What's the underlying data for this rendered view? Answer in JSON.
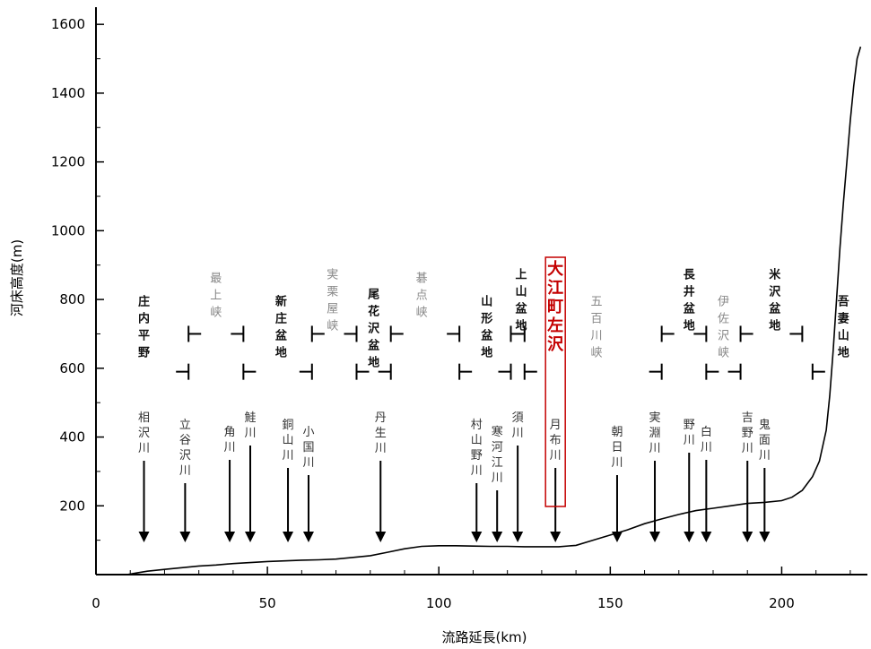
{
  "chart_data": {
    "type": "line",
    "title": "",
    "xlabel": "流路延長(km)",
    "ylabel": "河床高度(m)",
    "xlim": [
      0,
      225
    ],
    "ylim": [
      0,
      1650
    ],
    "x_ticks": [
      0,
      50,
      100,
      150,
      200
    ],
    "y_ticks": [
      200,
      400,
      600,
      800,
      1000,
      1200,
      1400,
      1600
    ],
    "grid": false,
    "series": [
      {
        "name": "",
        "points": [
          [
            9,
            0
          ],
          [
            12,
            5
          ],
          [
            15,
            10
          ],
          [
            20,
            15
          ],
          [
            25,
            20
          ],
          [
            30,
            25
          ],
          [
            35,
            28
          ],
          [
            40,
            32
          ],
          [
            45,
            35
          ],
          [
            50,
            38
          ],
          [
            55,
            40
          ],
          [
            60,
            42
          ],
          [
            65,
            43
          ],
          [
            70,
            45
          ],
          [
            75,
            50
          ],
          [
            80,
            55
          ],
          [
            85,
            65
          ],
          [
            90,
            75
          ],
          [
            95,
            82
          ],
          [
            100,
            84
          ],
          [
            105,
            84
          ],
          [
            110,
            83
          ],
          [
            115,
            82
          ],
          [
            120,
            82
          ],
          [
            125,
            81
          ],
          [
            130,
            81
          ],
          [
            135,
            81
          ],
          [
            140,
            85
          ],
          [
            145,
            100
          ],
          [
            150,
            115
          ],
          [
            155,
            130
          ],
          [
            160,
            148
          ],
          [
            165,
            162
          ],
          [
            170,
            175
          ],
          [
            175,
            186
          ],
          [
            180,
            193
          ],
          [
            185,
            200
          ],
          [
            190,
            207
          ],
          [
            195,
            210
          ],
          [
            200,
            215
          ],
          [
            203,
            225
          ],
          [
            206,
            245
          ],
          [
            209,
            285
          ],
          [
            211,
            330
          ],
          [
            213,
            420
          ],
          [
            214,
            520
          ],
          [
            215,
            650
          ],
          [
            216,
            800
          ],
          [
            217,
            950
          ],
          [
            218,
            1080
          ],
          [
            219,
            1200
          ],
          [
            220,
            1320
          ],
          [
            221,
            1420
          ],
          [
            222,
            1500
          ],
          [
            223,
            1535
          ]
        ]
      }
    ],
    "sections": [
      {
        "label": "庄内平野",
        "style": "bold",
        "x": 14,
        "start": 0,
        "end": 27
      },
      {
        "label": "最上峡",
        "style": "gray",
        "x": 35,
        "start": 27,
        "end": 43
      },
      {
        "label": "新庄盆地",
        "style": "bold",
        "x": 54,
        "start": 43,
        "end": 63
      },
      {
        "label": "実栗屋峡",
        "style": "gray",
        "x": 69,
        "start": 63,
        "end": 76
      },
      {
        "label": "尾花沢盆地",
        "style": "bold",
        "x": 81,
        "start": 76,
        "end": 86
      },
      {
        "label": "碁点峡",
        "style": "gray",
        "x": 95,
        "start": 86,
        "end": 106
      },
      {
        "label": "山形盆地",
        "style": "bold",
        "x": 114,
        "start": 106,
        "end": 121
      },
      {
        "label": "上山盆地",
        "style": "bold",
        "x": 124,
        "start": 121,
        "end": 125
      },
      {
        "label": "五百川峡",
        "style": "gray",
        "x": 146,
        "start": 125,
        "end": 165
      },
      {
        "label": "長井盆地",
        "style": "bold",
        "x": 173,
        "start": 165,
        "end": 178
      },
      {
        "label": "伊佐沢峡",
        "style": "gray",
        "x": 183,
        "start": 178,
        "end": 188
      },
      {
        "label": "米沢盆地",
        "style": "bold",
        "x": 198,
        "start": 188,
        "end": 206
      },
      {
        "label": "吾妻山地",
        "style": "bold",
        "x": 218,
        "start": 209,
        "end": 225
      }
    ],
    "highlight": {
      "label": "大江町左沢",
      "x": 134
    },
    "tributaries": [
      {
        "label": "相沢川",
        "x": 14
      },
      {
        "label": "立谷沢川",
        "x": 26
      },
      {
        "label": "角川",
        "x": 39
      },
      {
        "label": "鮭川",
        "x": 45
      },
      {
        "label": "銅山川",
        "x": 56
      },
      {
        "label": "小国川",
        "x": 62
      },
      {
        "label": "丹生川",
        "x": 83
      },
      {
        "label": "村山野川",
        "x": 111
      },
      {
        "label": "寒河江川",
        "x": 117
      },
      {
        "label": "須川",
        "x": 123
      },
      {
        "label": "月布川",
        "x": 134
      },
      {
        "label": "朝日川",
        "x": 152
      },
      {
        "label": "実淵川",
        "x": 163
      },
      {
        "label": "野川",
        "x": 173
      },
      {
        "label": "白川",
        "x": 178
      },
      {
        "label": "吉野川",
        "x": 190
      },
      {
        "label": "鬼面川",
        "x": 195
      }
    ]
  }
}
